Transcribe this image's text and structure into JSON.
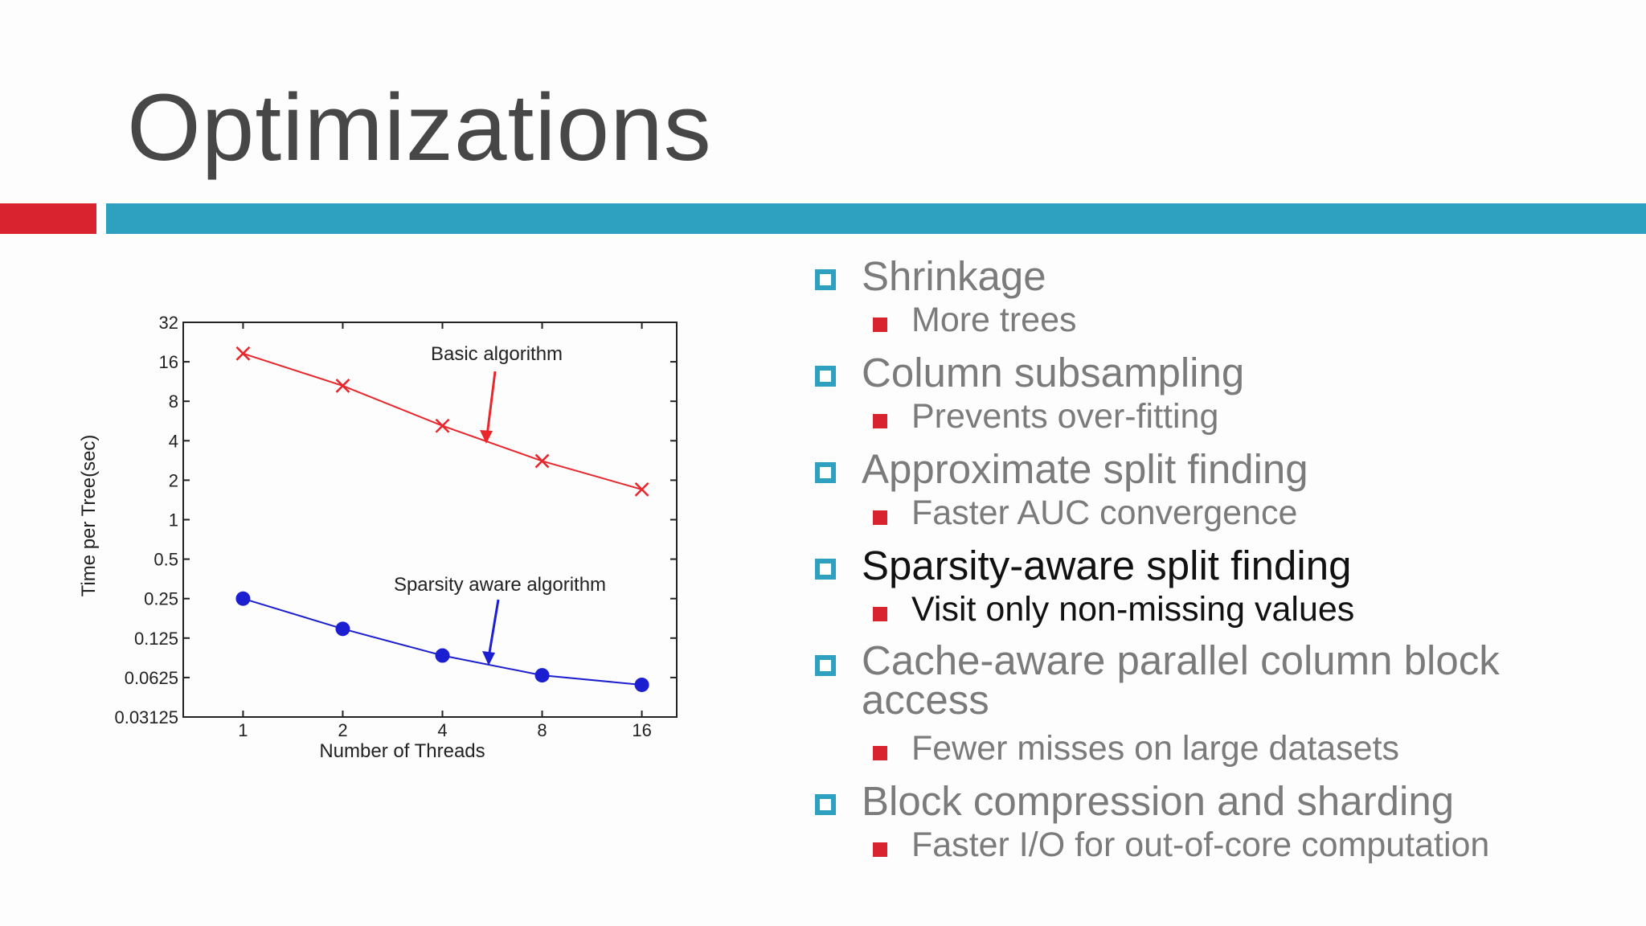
{
  "slide": {
    "title": "Optimizations",
    "colors": {
      "accent_red": "#d9232e",
      "accent_blue": "#2ea1c0",
      "title": "#474747",
      "bullet_text": "#7b7b7b",
      "highlight_text": "#111111"
    }
  },
  "bullets": [
    {
      "text": "Shrinkage",
      "sub": "More trees",
      "highlight": false
    },
    {
      "text": "Column subsampling",
      "sub": "Prevents over-fitting",
      "highlight": false
    },
    {
      "text": "Approximate split finding",
      "sub": "Faster AUC convergence",
      "highlight": false
    },
    {
      "text": "Sparsity-aware split finding",
      "sub": "Visit only non-missing values",
      "highlight": true
    },
    {
      "text": "Cache-aware parallel column block access",
      "sub": "Fewer misses on large datasets",
      "highlight": false
    },
    {
      "text": "Block compression and sharding",
      "sub": "Faster I/O for out-of-core computation",
      "highlight": false
    }
  ],
  "chart_data": {
    "type": "line",
    "x": [
      1,
      2,
      4,
      8,
      16
    ],
    "x_scale": "log2",
    "y_scale": "log2",
    "xlabel": "Number of Threads",
    "ylabel": "Time per Tree(sec)",
    "x_tick_labels": [
      "1",
      "2",
      "4",
      "8",
      "16"
    ],
    "y_tick_labels": [
      "32",
      "16",
      "8",
      "4",
      "2",
      "1",
      "0.5",
      "0.25",
      "0.125",
      "0.0625",
      "0.03125"
    ],
    "ylim": [
      0.03125,
      32
    ],
    "grid": false,
    "series": [
      {
        "name": "Basic algorithm",
        "marker": "x",
        "color": "#e8262b",
        "values": [
          18.5,
          10.5,
          5.2,
          2.8,
          1.7
        ]
      },
      {
        "name": "Sparsity aware algorithm",
        "marker": "o",
        "color": "#1c1fd0",
        "values": [
          0.25,
          0.147,
          0.092,
          0.065,
          0.055
        ]
      }
    ],
    "annotations": [
      {
        "text": "Basic algorithm",
        "series": 0
      },
      {
        "text": "Sparsity aware algorithm",
        "series": 1
      }
    ]
  }
}
